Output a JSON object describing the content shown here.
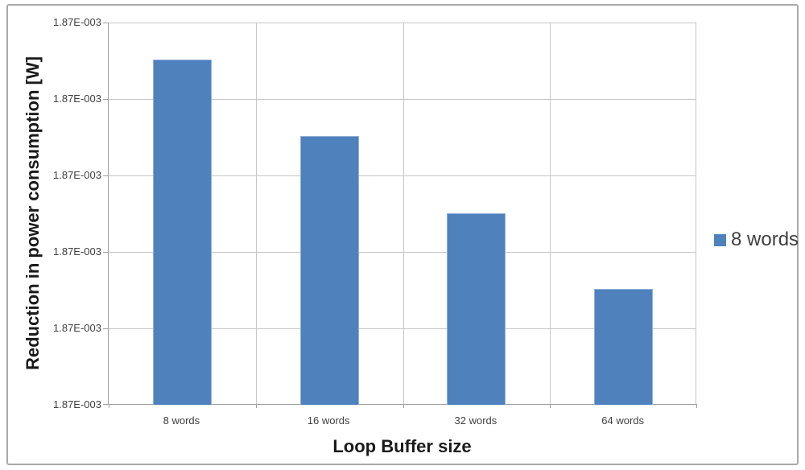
{
  "chart_data": {
    "type": "bar",
    "title": "",
    "xlabel": "Loop Buffer size",
    "ylabel": "Reduction in power consumption [W]",
    "categories": [
      "8 words",
      "16 words",
      "32 words",
      "64 words"
    ],
    "series": [
      {
        "name": "8 words",
        "values_axis_divisions": [
          4.52,
          3.52,
          2.51,
          1.52
        ]
      }
    ],
    "y_axis": {
      "tick_labels": [
        "1.87E-003",
        "1.87E-003",
        "1.87E-003",
        "1.87E-003",
        "1.87E-003",
        "1.87E-003"
      ],
      "divisions": 5,
      "ylim_divisions": [
        0,
        5
      ],
      "note": "All six tick labels display the identical rounded value 1.87E-003; bar heights are recorded in gridline divisions above the bottom tick."
    },
    "grid": "horizontal-and-category-boundaries",
    "legend": {
      "position": "right",
      "entries": [
        {
          "label": "8 words",
          "swatch_color": "#4F81BD"
        }
      ]
    },
    "colors": {
      "bar_fill": "#4F81BD",
      "bar_border": "#93B1D7",
      "gridline": "#C6C6C6",
      "axis_line": "#9F9F9F",
      "tick_text": "#404040",
      "title_text": "#1A1A1A",
      "chart_border": "#A9A9A9"
    }
  }
}
